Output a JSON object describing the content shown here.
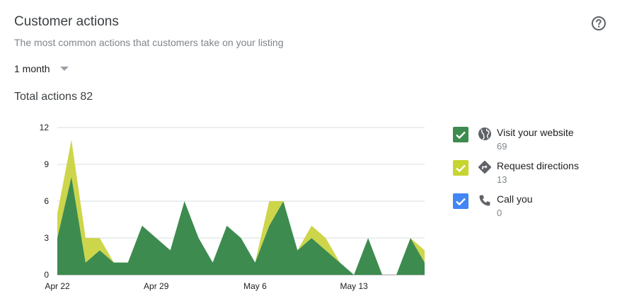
{
  "card": {
    "title": "Customer actions",
    "subtitle": "The most common actions that customers take on your listing",
    "period_label": "1 month",
    "total_label": "Total actions",
    "total_value": "82"
  },
  "legend": [
    {
      "label": "Visit your website",
      "count": "69",
      "color": "#3d8b4f",
      "icon": "globe-icon"
    },
    {
      "label": "Request directions",
      "count": "13",
      "color": "#c6d530",
      "icon": "directions-icon"
    },
    {
      "label": "Call you",
      "count": "0",
      "color": "#4285f4",
      "icon": "phone-icon"
    }
  ],
  "chart_data": {
    "type": "area",
    "stacked": true,
    "ylim": [
      0,
      12
    ],
    "y_ticks": [
      "0",
      "3",
      "6",
      "9",
      "12"
    ],
    "x_ticks": [
      "Apr 22",
      "Apr 29",
      "May 6",
      "May 13"
    ],
    "x": [
      "Apr 22",
      "Apr 23",
      "Apr 24",
      "Apr 25",
      "Apr 26",
      "Apr 27",
      "Apr 28",
      "Apr 29",
      "Apr 30",
      "May 1",
      "May 2",
      "May 3",
      "May 4",
      "May 5",
      "May 6",
      "May 7",
      "May 8",
      "May 9",
      "May 10",
      "May 11",
      "May 12",
      "May 13",
      "May 14",
      "May 15",
      "May 16",
      "May 17",
      "May 18"
    ],
    "grid": true,
    "series": [
      {
        "name": "Visit your website",
        "color": "#3d8b4f",
        "values": [
          3,
          8,
          1,
          2,
          1,
          1,
          4,
          3,
          2,
          6,
          3,
          1,
          4,
          3,
          1,
          4,
          6,
          2,
          3,
          2,
          1,
          0,
          3,
          0,
          0,
          3,
          1
        ]
      },
      {
        "name": "Request directions",
        "color": "#cdd64a",
        "values": [
          2,
          3,
          2,
          1,
          0,
          0,
          0,
          0,
          0,
          0,
          0,
          0,
          0,
          0,
          0,
          2,
          0,
          0,
          1,
          1,
          0,
          0,
          0,
          0,
          0,
          0,
          1
        ]
      },
      {
        "name": "Call you",
        "color": "#4285f4",
        "values": [
          0,
          0,
          0,
          0,
          0,
          0,
          0,
          0,
          0,
          0,
          0,
          0,
          0,
          0,
          0,
          0,
          0,
          0,
          0,
          0,
          0,
          0,
          0,
          0,
          0,
          0,
          0
        ]
      }
    ]
  }
}
